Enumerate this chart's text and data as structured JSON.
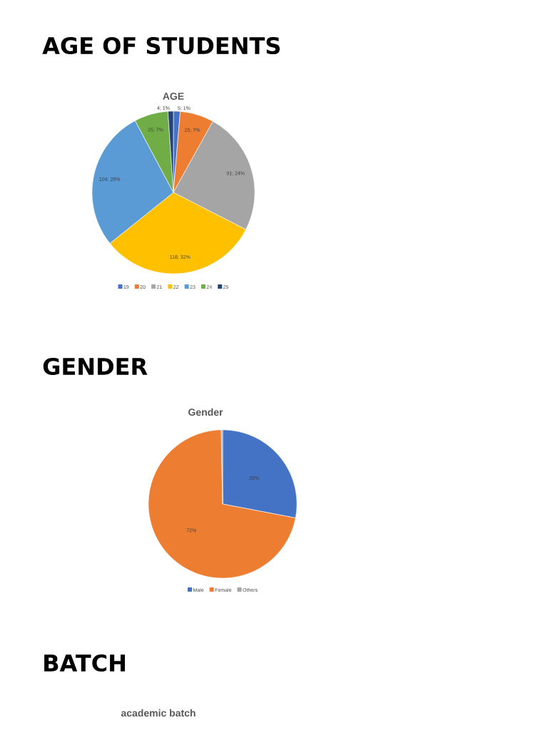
{
  "chart_data": [
    {
      "type": "pie",
      "title": "AGE OF STUDENTS",
      "subtitle": "AGE",
      "categories": [
        "19",
        "20",
        "21",
        "22",
        "23",
        "24",
        "25"
      ],
      "values": [
        5,
        25,
        91,
        118,
        104,
        25,
        4
      ],
      "colors": [
        "#4472c4",
        "#ed7d31",
        "#a5a5a5",
        "#ffc000",
        "#5b9bd5",
        "#70ad47",
        "#264478"
      ],
      "value_labels": [
        "5; 1%",
        "25; 7%",
        "91; 24%",
        "118; 32%",
        "104; 28%",
        "25; 7%",
        "4; 1%"
      ],
      "legend": "bottom"
    },
    {
      "type": "pie",
      "title": "GENDER",
      "subtitle": "Gender",
      "categories": [
        "Male",
        "Female",
        "Others"
      ],
      "values": [
        28,
        71.7,
        0.3
      ],
      "colors": [
        "#4472c4",
        "#ed7d31",
        "#a5a5a5"
      ],
      "value_labels": [
        "28%",
        "72%",
        null
      ],
      "legend": "bottom"
    },
    {
      "type": "other",
      "title": "BATCH",
      "subtitle": "academic batch"
    }
  ]
}
